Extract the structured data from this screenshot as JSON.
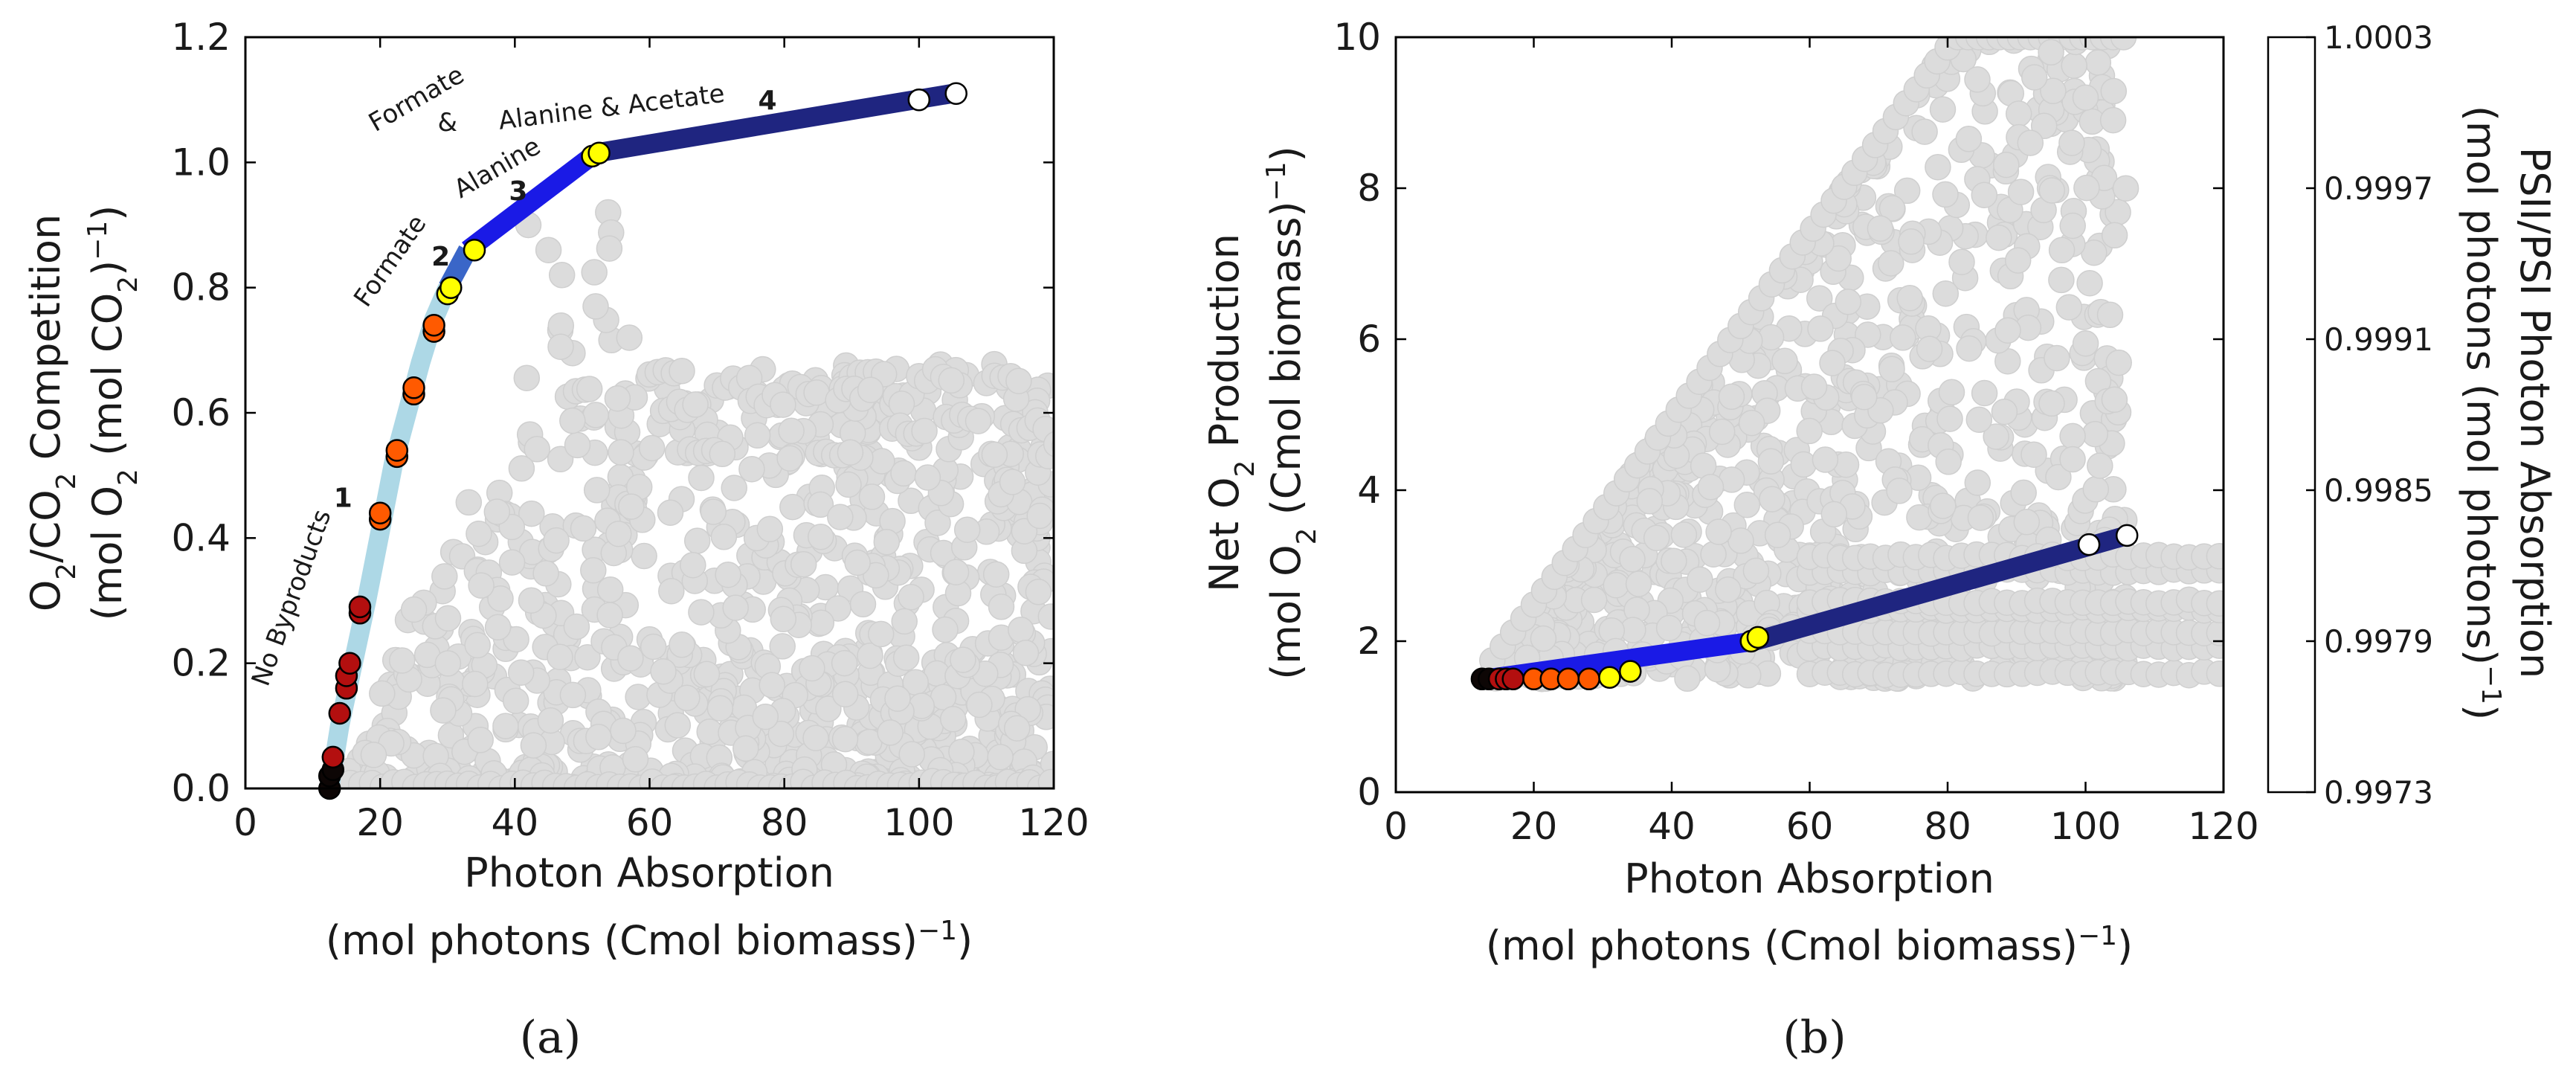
{
  "colormap": {
    "colors": [
      "#0d0605",
      "#b30f0f",
      "#ff5a00",
      "#ffff00",
      "#ffffff"
    ],
    "ticks": [
      "0.9973",
      "0.9979",
      "0.9985",
      "0.9991",
      "0.9997",
      "1.0003"
    ],
    "label": "PSII/PSI Photon Absorption",
    "unit_prefix": "(mol photons (mol photons)",
    "unit_sup": "−1",
    "unit_suffix": ")"
  },
  "chart_data": [
    {
      "panel": "(a)",
      "type": "scatter",
      "xlim": [
        0,
        120
      ],
      "ylim": [
        0,
        1.2
      ],
      "xticks": [
        0,
        20,
        40,
        60,
        80,
        100,
        120
      ],
      "yticks": [
        0.0,
        0.2,
        0.4,
        0.6,
        0.8,
        1.0,
        1.2
      ],
      "xtick_labels": [
        "0",
        "20",
        "40",
        "60",
        "80",
        "100",
        "120"
      ],
      "ytick_labels": [
        "0.0",
        "0.2",
        "0.4",
        "0.6",
        "0.8",
        "1.0",
        "1.2"
      ],
      "xlabel": "Photon Absorption",
      "xlabel2_prefix": "(mol photons (Cmol biomass)",
      "xlabel2_sup": "−1",
      "xlabel2_suffix": ")",
      "ylabel": "O2/CO2 Competition",
      "ylabel2": "(mol O2 (mol CO2)−1)",
      "frontier_segments": [
        {
          "color": "#add8e6",
          "x": [
            12.5,
            14,
            16,
            18,
            20,
            22,
            24,
            26,
            28,
            30
          ],
          "y": [
            0.0,
            0.1,
            0.2,
            0.3,
            0.41,
            0.52,
            0.6,
            0.68,
            0.75,
            0.8
          ]
        },
        {
          "color": "#3a66c8",
          "x": [
            30,
            33
          ],
          "y": [
            0.8,
            0.86
          ]
        },
        {
          "color": "#1a1ae6",
          "x": [
            33,
            52
          ],
          "y": [
            0.86,
            1.015
          ]
        },
        {
          "color": "#1f2580",
          "x": [
            52,
            105
          ],
          "y": [
            1.015,
            1.11
          ]
        }
      ],
      "frontier_points": [
        {
          "x": 12.5,
          "y": 0.0,
          "c": 0.9973
        },
        {
          "x": 12.5,
          "y": 0.02,
          "c": 0.9974
        },
        {
          "x": 13,
          "y": 0.03,
          "c": 0.9975
        },
        {
          "x": 13,
          "y": 0.05,
          "c": 0.998
        },
        {
          "x": 14,
          "y": 0.12,
          "c": 0.9981
        },
        {
          "x": 15,
          "y": 0.16,
          "c": 0.9982
        },
        {
          "x": 15,
          "y": 0.18,
          "c": 0.9982
        },
        {
          "x": 15.5,
          "y": 0.2,
          "c": 0.9983
        },
        {
          "x": 17,
          "y": 0.28,
          "c": 0.9983
        },
        {
          "x": 17,
          "y": 0.29,
          "c": 0.9984
        },
        {
          "x": 20,
          "y": 0.43,
          "c": 0.9986
        },
        {
          "x": 20,
          "y": 0.44,
          "c": 0.9987
        },
        {
          "x": 22.5,
          "y": 0.53,
          "c": 0.9987
        },
        {
          "x": 22.5,
          "y": 0.54,
          "c": 0.9988
        },
        {
          "x": 25,
          "y": 0.63,
          "c": 0.9988
        },
        {
          "x": 25,
          "y": 0.64,
          "c": 0.9989
        },
        {
          "x": 28,
          "y": 0.73,
          "c": 0.9989
        },
        {
          "x": 28,
          "y": 0.74,
          "c": 0.999
        },
        {
          "x": 30,
          "y": 0.79,
          "c": 0.9993
        },
        {
          "x": 30.5,
          "y": 0.8,
          "c": 0.9993
        },
        {
          "x": 34,
          "y": 0.86,
          "c": 0.9993
        },
        {
          "x": 51.5,
          "y": 1.01,
          "c": 0.9993
        },
        {
          "x": 52.5,
          "y": 1.015,
          "c": 0.9993
        },
        {
          "x": 100,
          "y": 1.1,
          "c": 1.0001
        },
        {
          "x": 105.5,
          "y": 1.11,
          "c": 1.0001
        }
      ],
      "annotations": [
        {
          "text": "No Byproducts",
          "x": 8,
          "y": 0.3,
          "rot": -70
        },
        {
          "text": "Formate",
          "x": 22.5,
          "y": 0.835,
          "rot": -55
        },
        {
          "text": "Formate",
          "x": 26,
          "y": 1.09,
          "rot": -30
        },
        {
          "text": "&",
          "x": 30,
          "y": 1.05,
          "rot": 0
        },
        {
          "text": "Alanine",
          "x": 38,
          "y": 0.98,
          "rot": -30
        },
        {
          "text": "Alanine & Acetate",
          "x": 54.5,
          "y": 1.075,
          "rot": -7
        },
        {
          "text": "1",
          "x": 14.5,
          "y": 0.45,
          "bold": true
        },
        {
          "text": "2",
          "x": 29,
          "y": 0.835,
          "bold": true
        },
        {
          "text": "3",
          "x": 40.5,
          "y": 0.94,
          "bold": true
        },
        {
          "text": "4",
          "x": 77.5,
          "y": 1.085,
          "bold": true
        }
      ]
    },
    {
      "panel": "(b)",
      "type": "scatter",
      "xlim": [
        0,
        120
      ],
      "ylim": [
        0,
        10
      ],
      "xticks": [
        0,
        20,
        40,
        60,
        80,
        100,
        120
      ],
      "yticks": [
        0,
        2,
        4,
        6,
        8,
        10
      ],
      "xtick_labels": [
        "0",
        "20",
        "40",
        "60",
        "80",
        "100",
        "120"
      ],
      "ytick_labels": [
        "0",
        "2",
        "4",
        "6",
        "8",
        "10"
      ],
      "xlabel": "Photon Absorption",
      "xlabel2_prefix": "(mol photons (Cmol biomass)",
      "xlabel2_sup": "−1",
      "xlabel2_suffix": ")",
      "ylabel": "Net O2 Production",
      "ylabel2": "(mol O2 (Cmol biomass)−1)",
      "frontier_segments": [
        {
          "color": "#1a1ae6",
          "x": [
            13,
            52
          ],
          "y": [
            1.5,
            2.0
          ]
        },
        {
          "color": "#1f2580",
          "x": [
            52,
            106
          ],
          "y": [
            2.0,
            3.4
          ]
        }
      ],
      "frontier_points": [
        {
          "x": 12.5,
          "y": 1.5,
          "c": 0.9973
        },
        {
          "x": 13.5,
          "y": 1.5,
          "c": 0.9975
        },
        {
          "x": 15,
          "y": 1.5,
          "c": 0.998
        },
        {
          "x": 16,
          "y": 1.5,
          "c": 0.9982
        },
        {
          "x": 17,
          "y": 1.5,
          "c": 0.9983
        },
        {
          "x": 20,
          "y": 1.5,
          "c": 0.9986
        },
        {
          "x": 22.5,
          "y": 1.5,
          "c": 0.9987
        },
        {
          "x": 25,
          "y": 1.5,
          "c": 0.9988
        },
        {
          "x": 28,
          "y": 1.5,
          "c": 0.9989
        },
        {
          "x": 31,
          "y": 1.52,
          "c": 0.9993
        },
        {
          "x": 34,
          "y": 1.6,
          "c": 0.9993
        },
        {
          "x": 51.5,
          "y": 2.0,
          "c": 0.9993
        },
        {
          "x": 52.5,
          "y": 2.05,
          "c": 0.9993
        },
        {
          "x": 100.5,
          "y": 3.28,
          "c": 1.0001
        },
        {
          "x": 106,
          "y": 3.4,
          "c": 1.0001
        }
      ]
    }
  ]
}
